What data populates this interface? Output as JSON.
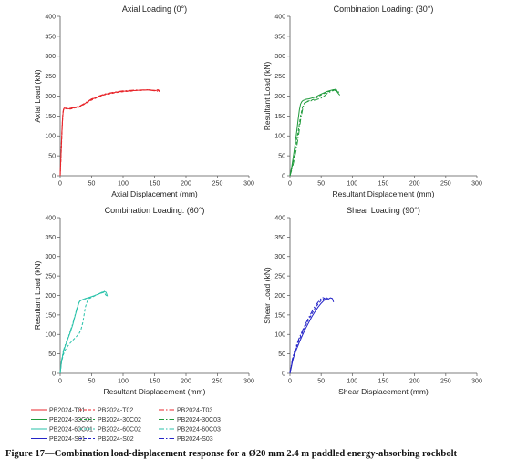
{
  "caption": "Figure 17—Combination load-displacement response for a Ø20 mm 2.4 m paddled energy-absorbing rockbolt",
  "chart_data": [
    {
      "type": "line",
      "title": "Axial Loading (0°)",
      "xlabel": "Axial Displacement (mm)",
      "ylabel": "Axial Load (kN)",
      "xlim": [
        0,
        300
      ],
      "ylim": [
        0,
        400
      ],
      "xticks": [
        "0",
        "50",
        "100",
        "150",
        "200",
        "250",
        "300"
      ],
      "yticks": [
        "0",
        "50",
        "100",
        "150",
        "200",
        "250",
        "300",
        "350",
        "400"
      ],
      "grid": false,
      "series": [
        {
          "name": "PB2024-T01",
          "color": "#e8262b",
          "dash": "solid",
          "x": [
            0,
            1,
            2,
            3,
            4,
            5,
            6,
            7,
            10,
            15,
            20,
            25,
            30,
            40,
            50,
            60,
            70,
            80,
            90,
            100,
            110,
            120,
            130,
            140,
            150,
            155,
            158
          ],
          "y": [
            0,
            40,
            80,
            120,
            150,
            165,
            168,
            170,
            169,
            168,
            170,
            172,
            173,
            182,
            192,
            198,
            204,
            207,
            210,
            212,
            213,
            214,
            215,
            215,
            213,
            215,
            211
          ]
        },
        {
          "name": "PB2024-T02",
          "color": "#e8262b",
          "dash": "3,2",
          "x": [
            0,
            1,
            2,
            3,
            4,
            5,
            6,
            7,
            10,
            15,
            20,
            25,
            30,
            40,
            50,
            60,
            70,
            80,
            90,
            100,
            110,
            120,
            130,
            140,
            150,
            155,
            160
          ],
          "y": [
            0,
            35,
            75,
            115,
            148,
            163,
            167,
            169,
            168,
            167,
            169,
            171,
            172,
            181,
            190,
            197,
            203,
            206,
            209,
            211,
            212,
            214,
            214,
            216,
            214,
            216,
            212
          ]
        },
        {
          "name": "PB2024-T03",
          "color": "#e8262b",
          "dash": "6,2,1.5,2",
          "x": [
            0,
            1,
            2,
            3,
            4,
            5,
            6,
            7,
            10,
            15,
            20,
            25,
            30,
            40,
            50,
            60,
            70,
            80,
            90,
            100,
            110,
            120,
            130,
            140,
            150,
            155
          ],
          "y": [
            0,
            45,
            85,
            125,
            152,
            166,
            169,
            171,
            170,
            169,
            171,
            173,
            174,
            183,
            193,
            199,
            205,
            208,
            211,
            213,
            214,
            215,
            215,
            216,
            214,
            212
          ]
        }
      ]
    },
    {
      "type": "line",
      "title": "Combination Loading: (30°)",
      "xlabel": "Resultant Displacement (mm)",
      "ylabel": "Resultant Load (kN)",
      "xlim": [
        0,
        300
      ],
      "ylim": [
        0,
        400
      ],
      "xticks": [
        "0",
        "50",
        "100",
        "150",
        "200",
        "250",
        "300"
      ],
      "yticks": [
        "0",
        "50",
        "100",
        "150",
        "200",
        "250",
        "300",
        "350",
        "400"
      ],
      "grid": false,
      "series": [
        {
          "name": "PB2024-30C01",
          "color": "#1e9a3a",
          "dash": "solid",
          "x": [
            0,
            3,
            6,
            10,
            13,
            15,
            17,
            19,
            21,
            23,
            26,
            30,
            40,
            50,
            60,
            65,
            70,
            75,
            78,
            80
          ],
          "y": [
            0,
            25,
            55,
            100,
            140,
            165,
            180,
            186,
            189,
            190,
            192,
            193,
            197,
            205,
            212,
            214,
            216,
            212,
            206,
            202
          ]
        },
        {
          "name": "PB2024-30C02",
          "color": "#1e9a3a",
          "dash": "3,2",
          "x": [
            0,
            3,
            6,
            10,
            14,
            17,
            20,
            23,
            26,
            30,
            35,
            40,
            50,
            60,
            65,
            70,
            75,
            78
          ],
          "y": [
            0,
            20,
            42,
            80,
            120,
            150,
            172,
            182,
            186,
            188,
            190,
            193,
            203,
            210,
            213,
            215,
            214,
            206
          ]
        },
        {
          "name": "PB2024-30C03",
          "color": "#1e9a3a",
          "dash": "6,2,1.5,2",
          "x": [
            0,
            3,
            6,
            10,
            14,
            17,
            20,
            22,
            25,
            30,
            40,
            50,
            55,
            60,
            65,
            70,
            72,
            75,
            78,
            80
          ],
          "y": [
            0,
            15,
            35,
            65,
            105,
            140,
            165,
            178,
            184,
            187,
            190,
            195,
            200,
            207,
            211,
            214,
            217,
            215,
            210,
            205
          ]
        }
      ]
    },
    {
      "type": "line",
      "title": "Combination Loading: (60°)",
      "xlabel": "Resultant Displacement (mm)",
      "ylabel": "Resultant Load (kN)",
      "xlim": [
        0,
        300
      ],
      "ylim": [
        0,
        400
      ],
      "xticks": [
        "0",
        "50",
        "100",
        "150",
        "200",
        "250",
        "300"
      ],
      "yticks": [
        "0",
        "50",
        "100",
        "150",
        "200",
        "250",
        "300",
        "350",
        "400"
      ],
      "grid": false,
      "series": [
        {
          "name": "PB2024-60C01",
          "color": "#2ac2aa",
          "dash": "solid",
          "x": [
            0,
            2,
            5,
            8,
            12,
            16,
            20,
            24,
            28,
            30,
            32,
            35,
            40,
            50,
            60,
            65,
            70,
            73,
            75
          ],
          "y": [
            0,
            30,
            55,
            70,
            88,
            105,
            125,
            150,
            172,
            182,
            187,
            189,
            192,
            197,
            203,
            206,
            210,
            208,
            198
          ]
        },
        {
          "name": "PB2024-60C02",
          "color": "#2ac2aa",
          "dash": "3,2",
          "x": [
            0,
            2,
            5,
            8,
            12,
            16,
            20,
            25,
            30,
            33,
            36,
            38,
            40,
            43,
            46,
            50,
            55,
            60,
            65,
            70,
            72,
            75
          ],
          "y": [
            0,
            28,
            48,
            60,
            70,
            78,
            85,
            93,
            102,
            112,
            130,
            150,
            170,
            185,
            192,
            195,
            199,
            203,
            206,
            208,
            202,
            196
          ]
        },
        {
          "name": "PB2024-60C03",
          "color": "#2ac2aa",
          "dash": "6,2,1.5,2",
          "x": [
            0,
            2,
            5,
            8,
            12,
            16,
            20,
            24,
            28,
            31,
            34,
            40,
            50,
            60,
            65,
            70,
            72
          ],
          "y": [
            0,
            32,
            58,
            73,
            90,
            108,
            128,
            152,
            175,
            185,
            188,
            191,
            197,
            203,
            207,
            211,
            205
          ]
        }
      ]
    },
    {
      "type": "line",
      "title": "Shear Loading (90°)",
      "xlabel": "Shear Displacement (mm)",
      "ylabel": "Shear Load (kN)",
      "xlim": [
        0,
        300
      ],
      "ylim": [
        0,
        400
      ],
      "xticks": [
        "0",
        "50",
        "100",
        "150",
        "200",
        "250",
        "300"
      ],
      "yticks": [
        "0",
        "50",
        "100",
        "150",
        "200",
        "250",
        "300",
        "350",
        "400"
      ],
      "grid": false,
      "series": [
        {
          "name": "PB2024-S01",
          "color": "#2424c8",
          "dash": "solid",
          "x": [
            0,
            2,
            4,
            6,
            10,
            15,
            20,
            25,
            30,
            35,
            40,
            45,
            50,
            55,
            58,
            60,
            62,
            65,
            68,
            70
          ],
          "y": [
            0,
            15,
            30,
            42,
            60,
            80,
            98,
            115,
            130,
            145,
            158,
            170,
            180,
            188,
            190,
            192,
            191,
            194,
            192,
            183
          ]
        },
        {
          "name": "PB2024-S02",
          "color": "#2424c8",
          "dash": "3,2",
          "x": [
            0,
            2,
            4,
            6,
            10,
            15,
            20,
            25,
            30,
            35,
            40,
            45,
            50,
            55,
            58,
            60,
            63
          ],
          "y": [
            0,
            18,
            34,
            47,
            66,
            87,
            105,
            122,
            138,
            152,
            166,
            178,
            187,
            192,
            195,
            193,
            187
          ]
        },
        {
          "name": "PB2024-S03",
          "color": "#2424c8",
          "dash": "6,2,1.5,2",
          "x": [
            0,
            2,
            4,
            6,
            10,
            15,
            20,
            25,
            30,
            35,
            40,
            45,
            50,
            52,
            55,
            58
          ],
          "y": [
            0,
            20,
            37,
            50,
            70,
            92,
            110,
            127,
            143,
            158,
            172,
            183,
            192,
            195,
            193,
            186
          ]
        }
      ]
    }
  ],
  "legend": {
    "placement": "bottom-left",
    "items": [
      {
        "name": "PB2024-T01",
        "color": "#e8262b",
        "dash": "solid"
      },
      {
        "name": "PB2024-T02",
        "color": "#e8262b",
        "dash": "3,2"
      },
      {
        "name": "PB2024-T03",
        "color": "#e8262b",
        "dash": "6,2,1.5,2"
      },
      {
        "name": "PB2024-30C01",
        "color": "#1e9a3a",
        "dash": "solid"
      },
      {
        "name": "PB2024-30C02",
        "color": "#1e9a3a",
        "dash": "3,2"
      },
      {
        "name": "PB2024-30C03",
        "color": "#1e9a3a",
        "dash": "6,2,1.5,2"
      },
      {
        "name": "PB2024-60C01",
        "color": "#2ac2aa",
        "dash": "solid"
      },
      {
        "name": "PB2024-60C02",
        "color": "#2ac2aa",
        "dash": "3,2"
      },
      {
        "name": "PB2024-60C03",
        "color": "#2ac2aa",
        "dash": "6,2,1.5,2"
      },
      {
        "name": "PB2024-S01",
        "color": "#2424c8",
        "dash": "solid"
      },
      {
        "name": "PB2024-S02",
        "color": "#2424c8",
        "dash": "3,2"
      },
      {
        "name": "PB2024-S03",
        "color": "#2424c8",
        "dash": "6,2,1.5,2"
      }
    ]
  }
}
